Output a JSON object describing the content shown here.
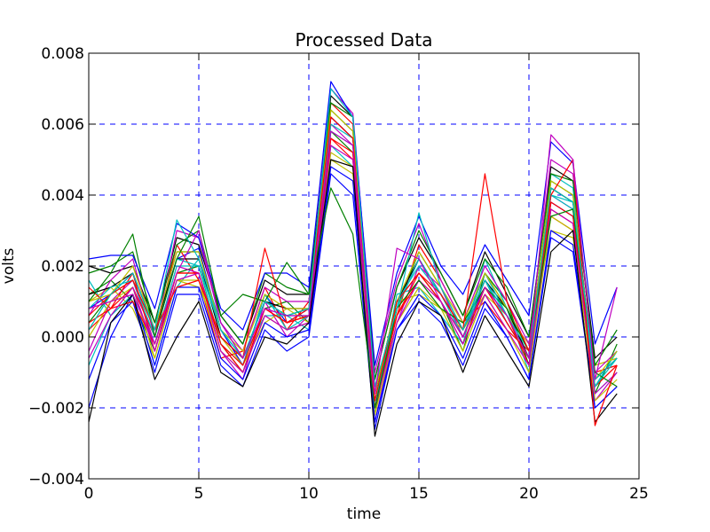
{
  "chart_data": {
    "type": "line",
    "title": "Processed Data",
    "xlabel": "time",
    "ylabel": "volts",
    "xlim": [
      0,
      25
    ],
    "ylim": [
      -0.004,
      0.008
    ],
    "xticks": [
      0,
      5,
      10,
      15,
      20,
      25
    ],
    "xtick_labels": [
      "0",
      "5",
      "10",
      "15",
      "20",
      "25"
    ],
    "yticks": [
      -0.004,
      -0.002,
      0.0,
      0.002,
      0.004,
      0.006,
      0.008
    ],
    "ytick_labels": [
      "−0.004",
      "−0.002",
      "0.000",
      "0.002",
      "0.004",
      "0.006",
      "0.008"
    ],
    "grid": true,
    "grid_color": "#0000ff",
    "series_colors": [
      "#0000ff",
      "#008000",
      "#ff0000",
      "#00bfbf",
      "#bf00bf",
      "#bfbf00",
      "#000000"
    ],
    "x": [
      0,
      1,
      2,
      3,
      4,
      5,
      6,
      7,
      8,
      9,
      10,
      11,
      12,
      13,
      14,
      15,
      16,
      17,
      18,
      19,
      20,
      21,
      22,
      23,
      24
    ],
    "series": [
      {
        "values": [
          0.0008,
          0.0012,
          0.0018,
          0.0002,
          0.0022,
          0.0025,
          0.0002,
          -0.0008,
          0.0012,
          0.0004,
          0.0008,
          0.0062,
          0.0056,
          -0.0018,
          0.0008,
          0.0022,
          0.0012,
          0.0002,
          0.0014,
          0.0006,
          -0.0006,
          0.0038,
          0.0034,
          -0.0012,
          -0.0006
        ]
      },
      {
        "values": [
          0.0012,
          0.0016,
          0.001,
          -0.0004,
          0.0018,
          0.002,
          -0.0002,
          -0.001,
          0.0008,
          0.001,
          0.0004,
          0.0058,
          0.0052,
          -0.0022,
          0.001,
          0.0018,
          0.001,
          -0.0004,
          0.0018,
          0.001,
          -0.0008,
          0.0042,
          0.0038,
          -0.0016,
          -0.0002
        ]
      },
      {
        "values": [
          0.0002,
          0.0008,
          0.0014,
          0.0,
          0.0026,
          0.0016,
          -0.0006,
          -0.0004,
          0.0014,
          0.0002,
          0.001,
          0.0066,
          0.006,
          -0.0014,
          0.0006,
          0.0026,
          0.0016,
          0.0004,
          0.001,
          0.0002,
          -0.0004,
          0.0034,
          0.003,
          -0.001,
          -0.0008
        ]
      },
      {
        "values": [
          0.0016,
          0.0006,
          0.0012,
          -0.0008,
          0.0014,
          0.0022,
          0.0004,
          -0.0006,
          0.0006,
          0.0006,
          0.0002,
          0.0054,
          0.0048,
          -0.002,
          0.0012,
          0.0014,
          0.0006,
          -0.0002,
          0.0022,
          0.0008,
          -0.001,
          0.0046,
          0.0042,
          -0.0014,
          -0.0004
        ]
      },
      {
        "values": [
          -0.0004,
          0.001,
          0.0016,
          -0.0002,
          0.002,
          0.0018,
          -0.0004,
          -0.0012,
          0.001,
          0.0,
          0.0006,
          0.006,
          0.0054,
          -0.0024,
          0.0004,
          0.002,
          0.0014,
          0.0,
          0.0016,
          0.0004,
          -0.0006,
          0.004,
          0.0036,
          -0.0018,
          -0.001
        ]
      },
      {
        "values": [
          0.001,
          0.0014,
          0.0008,
          -0.0006,
          0.0016,
          0.0014,
          0.0,
          -0.0008,
          0.0004,
          0.0008,
          0.0004,
          0.005,
          0.0046,
          -0.0016,
          0.001,
          0.0012,
          0.0008,
          0.0002,
          0.0012,
          0.0006,
          -0.0002,
          0.003,
          0.0028,
          -0.0008,
          -0.0006
        ]
      },
      {
        "values": [
          0.002,
          0.0018,
          0.002,
          0.0004,
          0.0028,
          0.0026,
          0.0006,
          -0.0002,
          0.0016,
          0.0012,
          0.0012,
          0.0068,
          0.0062,
          -0.0012,
          0.0014,
          0.0028,
          0.0018,
          0.0006,
          0.0024,
          0.0012,
          0.0,
          0.0048,
          0.0044,
          -0.0006,
          0.0
        ]
      },
      {
        "values": [
          -0.0012,
          0.0004,
          0.001,
          -0.001,
          0.0012,
          0.0012,
          -0.0008,
          -0.0014,
          0.0002,
          -0.0004,
          0.0,
          0.0046,
          0.004,
          -0.0026,
          0.0002,
          0.001,
          0.0004,
          -0.0008,
          0.0008,
          0.0,
          -0.0012,
          0.0028,
          0.0024,
          -0.002,
          -0.0014
        ]
      },
      {
        "values": [
          0.0004,
          0.0012,
          0.0016,
          0.0002,
          0.0024,
          0.0024,
          0.0002,
          -0.0006,
          0.001,
          0.0006,
          0.0008,
          0.0064,
          0.0058,
          -0.0016,
          0.0008,
          0.0024,
          0.0014,
          0.0002,
          0.0018,
          0.0008,
          -0.0004,
          0.0044,
          0.004,
          -0.0012,
          -0.0006
        ]
      },
      {
        "values": [
          0.0014,
          0.0008,
          0.0018,
          -0.0004,
          0.0018,
          0.0018,
          -0.0002,
          -0.001,
          0.0008,
          0.0004,
          0.0006,
          0.0056,
          0.005,
          -0.002,
          0.0006,
          0.0016,
          0.001,
          -0.0002,
          0.0014,
          0.0006,
          -0.0008,
          0.0036,
          0.0032,
          -0.0014,
          -0.0008
        ]
      },
      {
        "values": [
          -0.0008,
          0.0006,
          0.0012,
          -0.0002,
          0.002,
          0.002,
          -0.0002,
          -0.0008,
          0.0012,
          0.0002,
          0.0006,
          0.0058,
          0.0054,
          -0.0018,
          0.001,
          0.002,
          0.0012,
          0.0,
          0.0016,
          0.0004,
          -0.0006,
          0.004,
          0.0036,
          -0.0016,
          -0.001
        ]
      },
      {
        "values": [
          0.0006,
          0.0016,
          0.0022,
          0.0,
          0.003,
          0.0028,
          0.0004,
          -0.0004,
          0.0014,
          0.001,
          0.001,
          0.007,
          0.0063,
          -0.001,
          0.0016,
          0.0032,
          0.0016,
          0.0004,
          0.002,
          0.001,
          -0.0002,
          0.005,
          0.0046,
          -0.001,
          -0.0004
        ]
      },
      {
        "values": [
          0.0,
          0.001,
          0.0014,
          -0.0006,
          0.0016,
          0.0016,
          -0.0004,
          -0.001,
          0.0006,
          0.0002,
          0.0004,
          0.0052,
          0.0048,
          -0.0022,
          0.0004,
          0.0014,
          0.0008,
          -0.0004,
          0.0012,
          0.0002,
          -0.001,
          0.0034,
          0.003,
          -0.0018,
          -0.0012
        ]
      },
      {
        "values": [
          0.0012,
          0.0014,
          0.0018,
          0.0002,
          0.0022,
          0.0022,
          0.0,
          -0.0006,
          0.001,
          0.0008,
          0.0008,
          0.0062,
          0.0056,
          -0.0016,
          0.001,
          0.0022,
          0.0012,
          0.0002,
          0.0016,
          0.0008,
          -0.0006,
          0.0042,
          0.0038,
          -0.0012,
          -0.0006
        ]
      },
      {
        "values": [
          -0.002,
          0.0,
          0.0012,
          -0.0008,
          0.0014,
          0.0014,
          -0.0006,
          -0.0012,
          0.0004,
          0.0,
          0.0002,
          0.0048,
          0.0044,
          -0.0024,
          0.0002,
          0.0012,
          0.0006,
          -0.0006,
          0.001,
          0.0,
          -0.0012,
          0.003,
          0.0026,
          -0.002,
          -0.0014
        ]
      },
      {
        "values": [
          0.0018,
          0.002,
          0.0024,
          0.0004,
          0.0026,
          0.003,
          0.0006,
          -0.0002,
          0.0018,
          0.0014,
          0.0012,
          0.0066,
          0.0062,
          -0.0012,
          0.0014,
          0.003,
          0.0018,
          0.0006,
          0.0022,
          0.0014,
          0.0,
          0.0046,
          0.0044,
          -0.0008,
          0.0002
        ]
      },
      {
        "values": [
          0.0004,
          0.0008,
          0.001,
          -0.0002,
          0.0018,
          0.0018,
          -0.0002,
          -0.0008,
          0.0008,
          0.0004,
          0.0006,
          0.0056,
          0.0052,
          -0.002,
          0.0006,
          0.0018,
          0.001,
          0.0,
          0.0014,
          0.0004,
          -0.0006,
          0.0038,
          0.0034,
          -0.0014,
          -0.0008
        ]
      },
      {
        "values": [
          0.0008,
          0.0014,
          0.0016,
          0.0,
          0.0022,
          0.002,
          0.0002,
          -0.0006,
          0.001,
          0.0006,
          0.0006,
          0.006,
          0.0056,
          -0.0018,
          0.0008,
          0.0022,
          0.0012,
          0.0002,
          0.0018,
          0.0006,
          -0.0004,
          0.004,
          0.0038,
          -0.0014,
          -0.0006
        ]
      },
      {
        "values": [
          -0.0006,
          0.0006,
          0.0014,
          -0.0004,
          0.0016,
          0.0018,
          -0.0004,
          -0.001,
          0.0006,
          0.0002,
          0.0004,
          0.0054,
          0.005,
          -0.002,
          0.0004,
          0.0016,
          0.001,
          -0.0002,
          0.0012,
          0.0002,
          -0.0008,
          0.0036,
          0.0032,
          -0.0016,
          -0.001
        ]
      },
      {
        "values": [
          0.001,
          0.0012,
          0.002,
          0.0002,
          0.0024,
          0.0024,
          0.0002,
          -0.0004,
          0.0012,
          0.0008,
          0.0008,
          0.0064,
          0.0058,
          -0.0016,
          0.001,
          0.0024,
          0.0014,
          0.0004,
          0.0018,
          0.0008,
          -0.0004,
          0.0044,
          0.004,
          -0.0012,
          -0.0004
        ]
      },
      {
        "values": [
          -0.0024,
          0.0004,
          0.0012,
          -0.0012,
          0.0,
          0.001,
          -0.001,
          -0.0014,
          0.0,
          -0.0002,
          0.0004,
          0.005,
          0.0048,
          -0.0028,
          -0.0002,
          0.001,
          0.0006,
          -0.001,
          0.0006,
          -0.0004,
          -0.0014,
          0.0024,
          0.003,
          -0.0024,
          -0.0016
        ]
      },
      {
        "values": [
          0.0022,
          0.0023,
          0.0023,
          0.0008,
          0.0032,
          0.0028,
          0.0008,
          0.0002,
          0.0018,
          0.0018,
          0.0014,
          0.0072,
          0.0062,
          -0.0008,
          0.0018,
          0.0034,
          0.002,
          0.0012,
          0.0026,
          0.0016,
          0.0006,
          0.0055,
          0.0049,
          -0.0002,
          0.0014
        ]
      },
      {
        "values": [
          0.001,
          0.0018,
          0.0029,
          0.0,
          0.0022,
          0.0034,
          0.0006,
          0.0012,
          0.001,
          0.0021,
          0.0012,
          0.0042,
          0.0029,
          -0.002,
          0.0008,
          0.0016,
          0.0008,
          0.0004,
          0.0014,
          0.0008,
          -0.0004,
          0.0034,
          0.0036,
          -0.001,
          -0.0014
        ]
      },
      {
        "values": [
          0.0006,
          0.0012,
          0.0016,
          0.0002,
          0.0014,
          0.0016,
          0.0,
          -0.0006,
          0.0025,
          0.0004,
          0.0008,
          0.0062,
          0.0056,
          -0.0018,
          0.001,
          0.0018,
          0.0012,
          0.0002,
          0.0046,
          0.001,
          -0.0004,
          0.004,
          0.005,
          -0.0025,
          -0.0008
        ]
      },
      {
        "values": [
          0.0002,
          0.0012,
          0.0018,
          0.0002,
          0.0033,
          0.0022,
          0.0002,
          -0.0006,
          0.001,
          0.0006,
          0.0008,
          0.007,
          0.0062,
          -0.0014,
          0.0008,
          0.0035,
          0.0014,
          0.0002,
          0.0016,
          0.0006,
          -0.0006,
          0.0042,
          0.0038,
          -0.0012,
          -0.0006
        ]
      },
      {
        "values": [
          0.0008,
          0.001,
          0.0012,
          -0.0002,
          0.0018,
          0.003,
          0.0004,
          -0.0006,
          0.0008,
          0.0006,
          0.0006,
          0.0058,
          0.0054,
          -0.0016,
          0.0025,
          0.0022,
          0.001,
          0.0,
          0.0014,
          0.0006,
          -0.0006,
          0.0057,
          0.005,
          -0.0012,
          0.0014
        ]
      }
    ]
  }
}
